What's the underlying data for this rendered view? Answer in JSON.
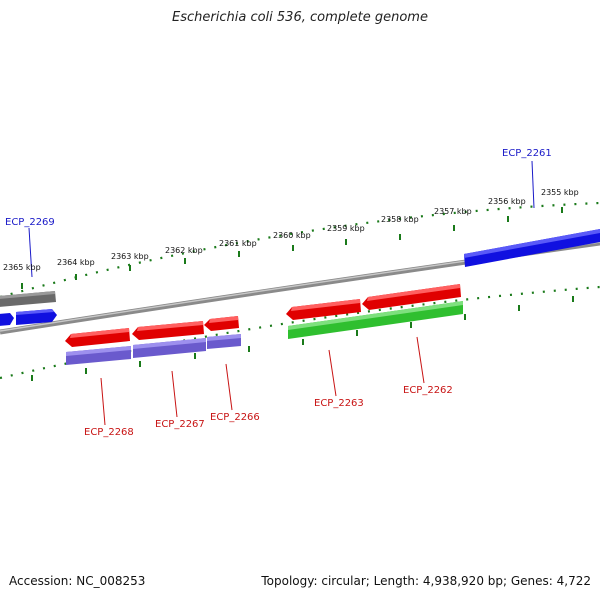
{
  "title": "Escherichia coli 536, complete genome",
  "footer": {
    "accession": "Accession: NC_008253",
    "summary": "Topology: circular; Length: 4,938,920 bp; Genes: 4,722"
  },
  "colors": {
    "forward_gene": "#1010e0",
    "reverse_gene": "#e00000",
    "rna_green": "#2fbf2f",
    "cds_purple": "#6a5acd",
    "gray_feature": "#666666",
    "backbone": "#8a8a8a",
    "tick_green": "#1a7a1a",
    "label_blue": "#1a1ac8",
    "label_red": "#c81414"
  },
  "ruler": {
    "unit": "kbp",
    "labels": [
      "2355 kbp",
      "2356 kbp",
      "2357 kbp",
      "2358 kbp",
      "2359 kbp",
      "2360 kbp",
      "2361 kbp",
      "2362 kbp",
      "2363 kbp",
      "2364 kbp",
      "2365 kbp"
    ]
  },
  "gene_labels_top": [
    "ECP_2261",
    "ECP_2269"
  ],
  "gene_labels_bottom": [
    "ECP_2262",
    "ECP_2263",
    "ECP_2266",
    "ECP_2267",
    "ECP_2268"
  ]
}
